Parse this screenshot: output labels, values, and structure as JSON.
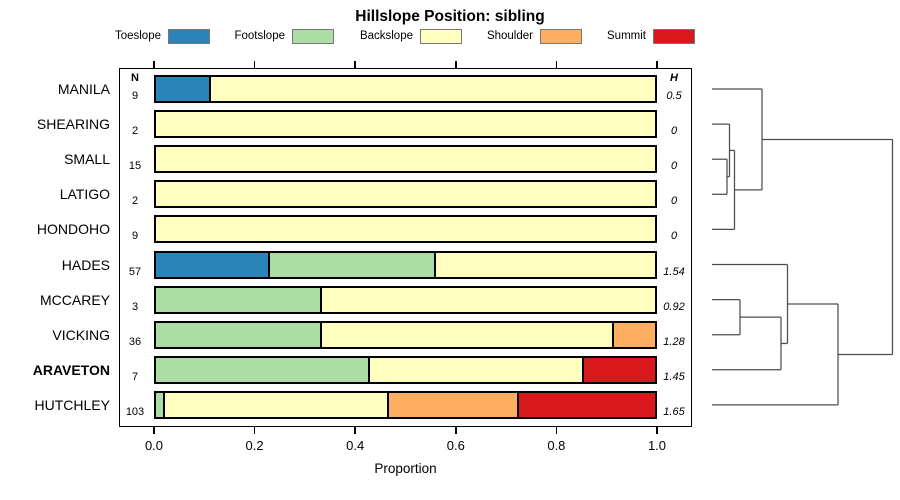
{
  "title": "Hillslope Position: sibling",
  "legend": [
    {
      "label": "Toeslope",
      "color": "#2B83BA"
    },
    {
      "label": "Footslope",
      "color": "#ABDDA4"
    },
    {
      "label": "Backslope",
      "color": "#FFFFBF"
    },
    {
      "label": "Shoulder",
      "color": "#FDAE61"
    },
    {
      "label": "Summit",
      "color": "#D7191C"
    }
  ],
  "columns": {
    "n_header": "N",
    "h_header": "H"
  },
  "axis": {
    "label": "Proportion",
    "tick_labels": [
      "0.0",
      "0.2",
      "0.4",
      "0.6",
      "0.8",
      "1.0"
    ],
    "tick_values": [
      0,
      0.2,
      0.4,
      0.6,
      0.8,
      1.0
    ]
  },
  "chart_data": {
    "type": "bar",
    "orientation": "horizontal-stacked",
    "title": "Hillslope Position: sibling",
    "xlabel": "Proportion",
    "xlim": [
      0,
      1
    ],
    "categories": [
      "Toeslope",
      "Footslope",
      "Backslope",
      "Shoulder",
      "Summit"
    ],
    "colors": {
      "Toeslope": "#2B83BA",
      "Footslope": "#ABDDA4",
      "Backslope": "#FFFFBF",
      "Shoulder": "#FDAE61",
      "Summit": "#D7191C"
    },
    "rows": [
      {
        "label": "MANILA",
        "n": "9",
        "h": "0.5",
        "bold": false,
        "segments": [
          [
            "Toeslope",
            0.111
          ],
          [
            "Backslope",
            0.889
          ]
        ]
      },
      {
        "label": "SHEARING",
        "n": "2",
        "h": "0",
        "bold": false,
        "segments": [
          [
            "Backslope",
            1.0
          ]
        ]
      },
      {
        "label": "SMALL",
        "n": "15",
        "h": "0",
        "bold": false,
        "segments": [
          [
            "Backslope",
            1.0
          ]
        ]
      },
      {
        "label": "LATIGO",
        "n": "2",
        "h": "0",
        "bold": false,
        "segments": [
          [
            "Backslope",
            1.0
          ]
        ]
      },
      {
        "label": "HONDOHO",
        "n": "9",
        "h": "0",
        "bold": false,
        "segments": [
          [
            "Backslope",
            1.0
          ]
        ]
      },
      {
        "label": "HADES",
        "n": "57",
        "h": "1.54",
        "bold": false,
        "segments": [
          [
            "Toeslope",
            0.228
          ],
          [
            "Footslope",
            0.333
          ],
          [
            "Backslope",
            0.439
          ]
        ]
      },
      {
        "label": "MCCAREY",
        "n": "3",
        "h": "0.92",
        "bold": false,
        "segments": [
          [
            "Footslope",
            0.333
          ],
          [
            "Backslope",
            0.667
          ]
        ]
      },
      {
        "label": "VICKING",
        "n": "36",
        "h": "1.28",
        "bold": false,
        "segments": [
          [
            "Footslope",
            0.333
          ],
          [
            "Backslope",
            0.584
          ],
          [
            "Shoulder",
            0.083
          ]
        ]
      },
      {
        "label": "ARAVETON",
        "n": "7",
        "h": "1.45",
        "bold": true,
        "segments": [
          [
            "Footslope",
            0.429
          ],
          [
            "Backslope",
            0.428
          ],
          [
            "Summit",
            0.143
          ]
        ]
      },
      {
        "label": "HUTCHLEY",
        "n": "103",
        "h": "1.65",
        "bold": false,
        "segments": [
          [
            "Footslope",
            0.019
          ],
          [
            "Backslope",
            0.447
          ],
          [
            "Shoulder",
            0.262
          ],
          [
            "Summit",
            0.272
          ]
        ]
      }
    ],
    "dendrogram": {
      "merges": [
        [
          "L2",
          "L3",
          727
        ],
        [
          "L1",
          "M0",
          729.5
        ],
        [
          "M1",
          "L4",
          734.5
        ],
        [
          "L0",
          "M2",
          762
        ],
        [
          "L6",
          "L7",
          740
        ],
        [
          "M4",
          "L8",
          781
        ],
        [
          "L5",
          "M5",
          787.5
        ],
        [
          "M6",
          "L9",
          838
        ],
        [
          "M3",
          "M7",
          892.5
        ]
      ]
    }
  }
}
